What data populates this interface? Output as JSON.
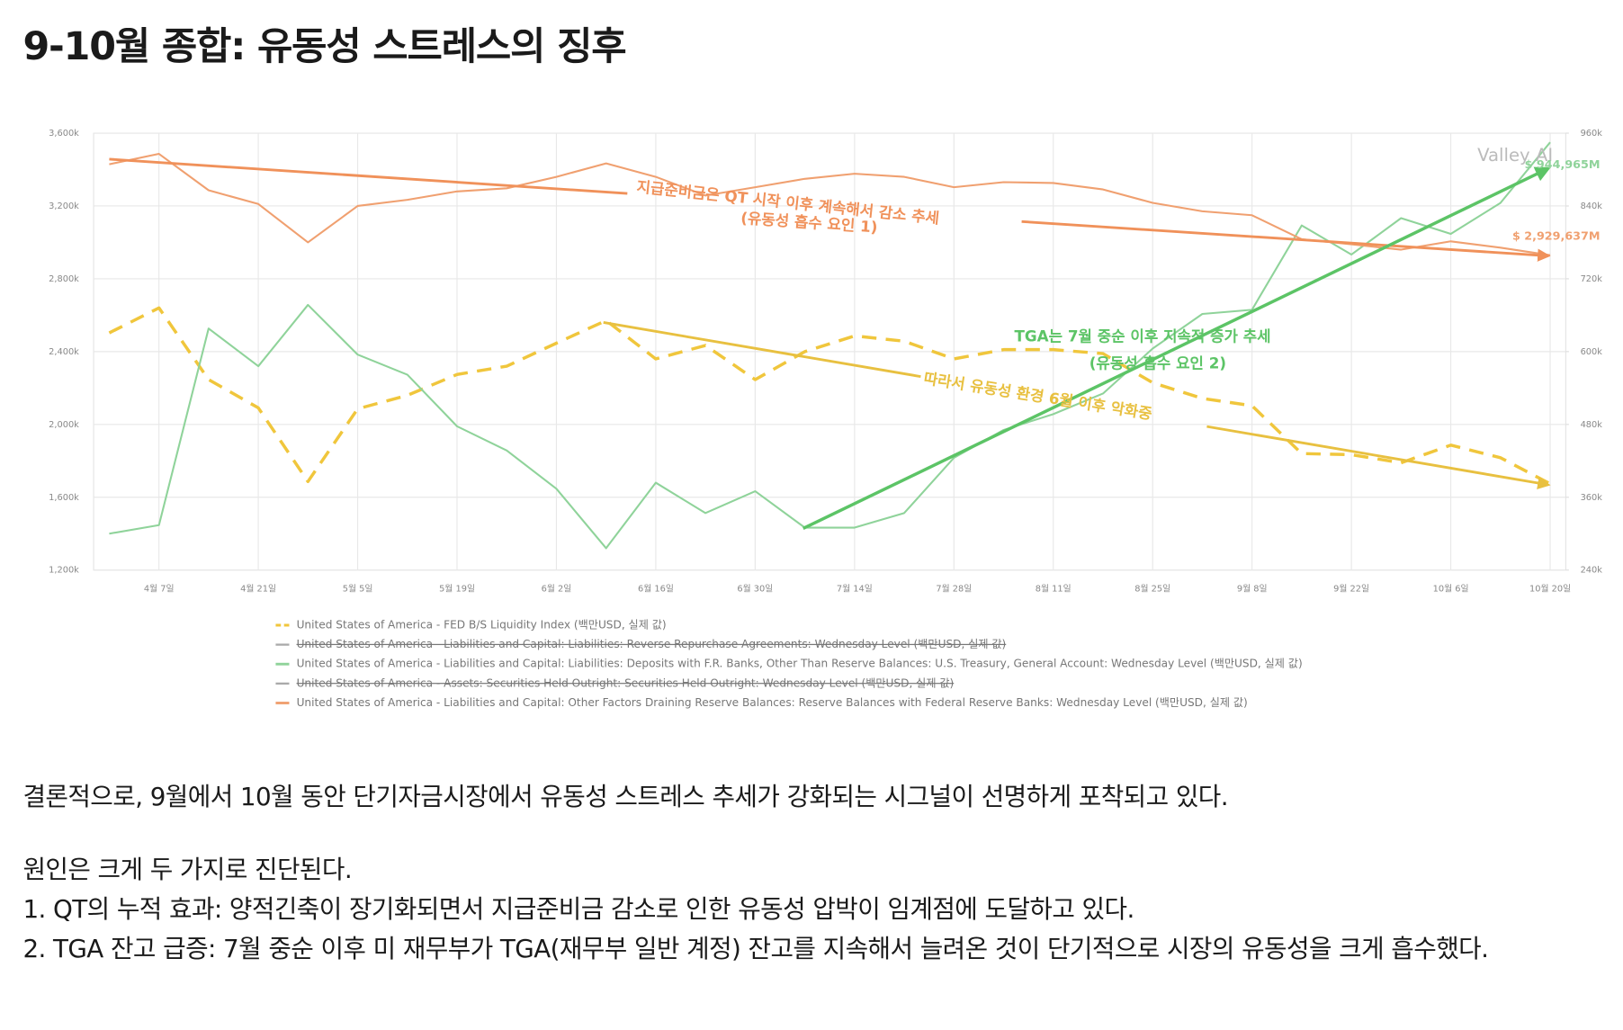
{
  "title": "9-10월 종합: 유동성 스트레스의 징후",
  "chart_data": {
    "type": "line",
    "watermark": "Valley AI",
    "categories": [
      null,
      "4월 7일",
      null,
      "4월 21일",
      null,
      "5월 5일",
      null,
      "5월 19일",
      null,
      "6월 2일",
      null,
      "6월 16일",
      null,
      "6월 30일",
      null,
      "7월 14일",
      null,
      "7월 28일",
      null,
      "8월 11일",
      null,
      "8월 25일",
      null,
      "9월 8일",
      null,
      "9월 22일",
      null,
      "10월 6일",
      null,
      "10월 20일"
    ],
    "ylim": [
      1200000,
      3600000
    ],
    "yticks": [
      {
        "value": 1200000,
        "label": "1,200k"
      },
      {
        "value": 1600000,
        "label": "1,600k"
      },
      {
        "value": 2000000,
        "label": "2,000k"
      },
      {
        "value": 2400000,
        "label": "2,400k"
      },
      {
        "value": 2800000,
        "label": "2,800k"
      },
      {
        "value": 3200000,
        "label": "3,200k"
      },
      {
        "value": 3600000,
        "label": "3,600k"
      }
    ],
    "y2lim": [
      240000,
      960000
    ],
    "y2ticks": [
      {
        "value": 240000,
        "label": "240k"
      },
      {
        "value": 360000,
        "label": "360k"
      },
      {
        "value": 480000,
        "label": "480k"
      },
      {
        "value": 600000,
        "label": "600k"
      },
      {
        "value": 720000,
        "label": "720k"
      },
      {
        "value": 840000,
        "label": "840k"
      },
      {
        "value": 960000,
        "label": "960k"
      }
    ],
    "grid": true,
    "series": [
      {
        "name": "United States of America - FED B/S Liquidity Index (백만USD, 실제 값)",
        "color": "#f0c63c",
        "dashed": true,
        "values": [
          2503000,
          2640000,
          2246000,
          2091000,
          1686000,
          2086000,
          2160000,
          2274000,
          2320000,
          2446000,
          2571000,
          2360000,
          2434000,
          2246000,
          2400000,
          2486000,
          2457000,
          2360000,
          2411000,
          2411000,
          2389000,
          2229000,
          2143000,
          2103000,
          1840000,
          1834000,
          1789000,
          1886000,
          1817000,
          1674000
        ]
      },
      {
        "name": "United States of America - Liabilities and Capital: Liabilities: Deposits with F.R. Banks, Other Than Reserve Balances: U.S. Treasury, General Account: Wednesday Level (백만USD, 실제 값)",
        "color": "#8fd39a",
        "axis": "y2",
        "values": [
          300000,
          314000,
          638000,
          576000,
          677000,
          595000,
          562000,
          477000,
          437000,
          374000,
          276000,
          384000,
          334000,
          370000,
          310000,
          310000,
          334000,
          425000,
          471000,
          497000,
          531000,
          605000,
          662000,
          669000,
          808000,
          760000,
          820000,
          794000,
          845000,
          944965
        ],
        "value_labels": [
          null,
          null,
          null,
          null,
          null,
          null,
          null,
          null,
          null,
          null,
          null,
          null,
          null,
          null,
          null,
          null,
          null,
          null,
          null,
          null,
          null,
          null,
          null,
          null,
          null,
          null,
          null,
          null,
          null,
          "$ 944,965M"
        ]
      },
      {
        "name": "United States of America - Liabilities and Capital: Other Factors Draining Reserve Balances: Reserve Balances with Federal Reserve Banks: Wednesday Level (백만USD, 실제 값)",
        "color": "#f0a070",
        "values": [
          3429000,
          3486000,
          3286000,
          3211000,
          3000000,
          3200000,
          3234000,
          3280000,
          3297000,
          3360000,
          3434000,
          3360000,
          3257000,
          3303000,
          3349000,
          3377000,
          3360000,
          3303000,
          3331000,
          3326000,
          3291000,
          3217000,
          3171000,
          3149000,
          3017000,
          2989000,
          2960000,
          3006000,
          2971000,
          2929637
        ],
        "value_labels": [
          null,
          null,
          null,
          null,
          null,
          null,
          null,
          null,
          null,
          null,
          null,
          null,
          null,
          null,
          null,
          null,
          null,
          null,
          null,
          null,
          null,
          null,
          null,
          null,
          null,
          null,
          null,
          null,
          null,
          "$ 2,929,637M"
        ]
      }
    ],
    "legend": [
      {
        "series": 0
      },
      {
        "name": "United States of America - Liabilities and Capital: Liabilities: Reverse Repurchase Agreements: Wednesday Level (백만USD, 실제 값)",
        "hidden": true
      },
      {
        "series": 1
      },
      {
        "name": "United States of America - Assets: Securities Held Outright: Securities Held Outright: Wednesday Level (백만USD, 실제 값)",
        "hidden": true
      },
      {
        "series": 2
      }
    ],
    "annotations": {
      "reserve_1": "지급준비금은 QT 시작 이후 계속해서 감소 추세",
      "reserve_2": "(유동성 흡수 요인 1)",
      "tga_1": "TGA는 7월 중순 이후 지속적 증가 추세",
      "tga_2": "(유동성 흡수 요인 2)",
      "liquidity": "따라서 유동성 환경 6월 이후 악화중"
    }
  },
  "body": {
    "paragraph_1": "결론적으로, 9월에서 10월 동안 단기자금시장에서 유동성 스트레스 추세가 강화되는 시그널이 선명하게 포착되고 있다.",
    "paragraph_2": "원인은 크게 두 가지로 진단된다.",
    "items": [
      "1. QT의 누적 효과: 양적긴축이 장기화되면서 지급준비금 감소로 인한 유동성 압박이 임계점에 도달하고 있다.",
      "2. TGA 잔고 급증: 7월 중순 이후 미 재무부가 TGA(재무부 일반 계정) 잔고를 지속해서 늘려온 것이 단기적으로 시장의 유동성을 크게 흡수했다."
    ]
  }
}
